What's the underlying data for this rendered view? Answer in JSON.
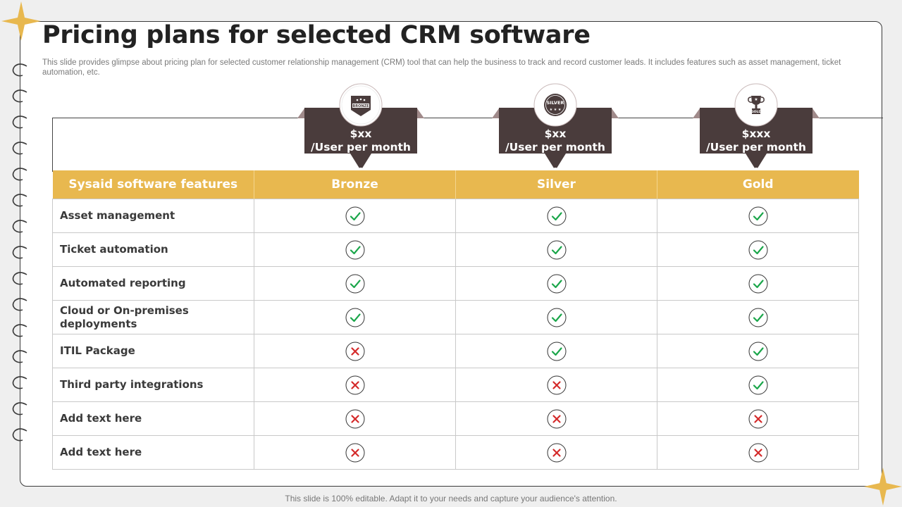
{
  "title": "Pricing plans for selected CRM software",
  "subtitle": "This slide provides glimpse about pricing plan for selected customer relationship management (CRM) tool that can help the business to track and record customer leads. It includes features such as asset management, ticket automation, etc.",
  "footer": "This slide is 100% editable. Adapt it to your needs and capture your audience's attention.",
  "colors": {
    "accent": "#e8b84f",
    "tag": "#4a3c3c",
    "check": "#1aa64a",
    "cross": "#d42a2a"
  },
  "plans": [
    {
      "name": "Bronze",
      "price": "$xx",
      "unit": "/User per month",
      "badge_text": "BRONZE",
      "icon": "bronze-medal-icon"
    },
    {
      "name": "Silver",
      "price": "$xx",
      "unit": "/User per month",
      "badge_text": "SILVER",
      "icon": "silver-medal-icon"
    },
    {
      "name": "Gold",
      "price": "$xxx",
      "unit": "/User per month",
      "badge_text": "GOLD",
      "icon": "gold-trophy-icon"
    }
  ],
  "table": {
    "header": "Sysaid software features",
    "rows": [
      {
        "feature": "Asset management",
        "values": [
          true,
          true,
          true
        ]
      },
      {
        "feature": "Ticket automation",
        "values": [
          true,
          true,
          true
        ]
      },
      {
        "feature": "Automated reporting",
        "values": [
          true,
          true,
          true
        ]
      },
      {
        "feature": "Cloud or On-premises deployments",
        "values": [
          true,
          true,
          true
        ]
      },
      {
        "feature": "ITIL Package",
        "values": [
          false,
          true,
          true
        ]
      },
      {
        "feature": "Third party integrations",
        "values": [
          false,
          false,
          true
        ]
      },
      {
        "feature": "Add text here",
        "values": [
          false,
          false,
          false
        ]
      },
      {
        "feature": "Add text here",
        "values": [
          false,
          false,
          false
        ]
      }
    ]
  }
}
